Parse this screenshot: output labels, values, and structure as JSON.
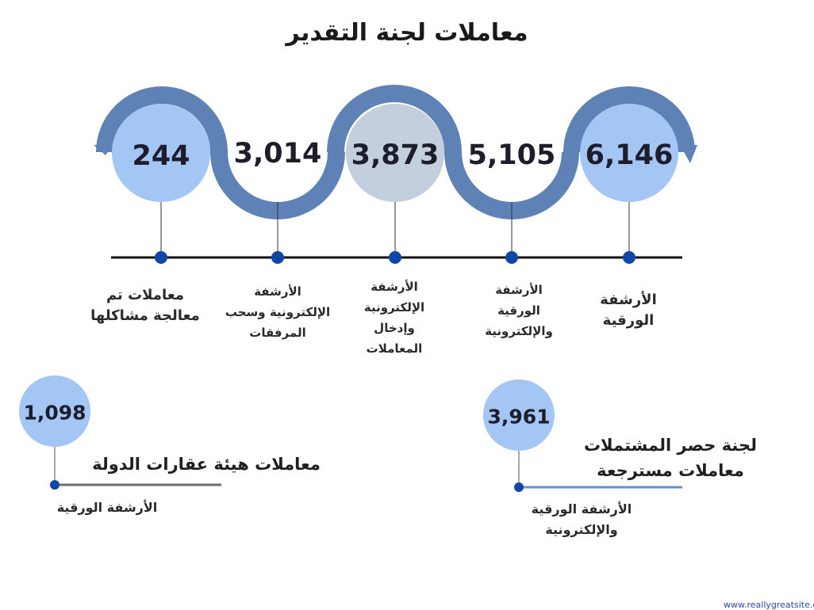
{
  "title": "معاملات لجنة التقدير",
  "colors": {
    "band": "#5f82b6",
    "circle_light": "#a4c6f5",
    "circle_grey": "#c3cfdd",
    "dot": "#0f47a8",
    "line": "#111111",
    "line_grey": "#6e6e6e",
    "line_blue": "#6a8fd0"
  },
  "timeline": [
    {
      "value": "6,146",
      "label_lines": [
        "الأرشفة",
        "الورقية"
      ]
    },
    {
      "value": "5,105",
      "label_lines": [
        "الأرشفة",
        "الورقية",
        "والإلكترونية"
      ]
    },
    {
      "value": "3,873",
      "label_lines": [
        "الأرشفة",
        "الإلكترونية",
        "وإدخال",
        "المعاملات"
      ]
    },
    {
      "value": "3,014",
      "label_lines": [
        "الأرشفة",
        "الإلكترونية وسحب",
        "المرفقات"
      ]
    },
    {
      "value": "244",
      "label_lines": [
        "معاملات تم",
        "معالجة مشاكلها"
      ]
    }
  ],
  "bottom_left": {
    "value": "1,098",
    "heading": "معاملات هيئة عقارات الدولة",
    "sub": "الأرشفة الورقية"
  },
  "bottom_right": {
    "value": "3,961",
    "heading_lines": [
      "لجنة حصر المشتملات",
      "معاملات مسترجعة"
    ],
    "sub_lines": [
      "الأرشفة الورقية",
      "والإلكترونية"
    ]
  },
  "footer": "www.reallygreatsite.com"
}
